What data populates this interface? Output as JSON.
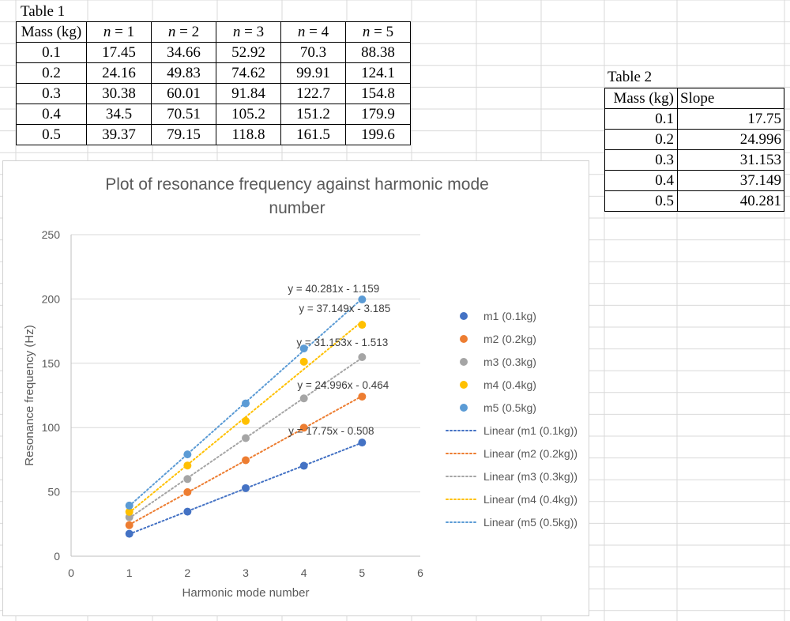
{
  "table1": {
    "caption": "Table 1",
    "headers": [
      "Mass (kg)",
      "n = 1",
      "n = 2",
      "n = 3",
      "n = 4",
      "n = 5"
    ],
    "header_var": "n",
    "header_vals": [
      "= 1",
      "= 2",
      "= 3",
      "= 4",
      "= 5"
    ],
    "rows": [
      [
        "0.1",
        "17.45",
        "34.66",
        "52.92",
        "70.3",
        "88.38"
      ],
      [
        "0.2",
        "24.16",
        "49.83",
        "74.62",
        "99.91",
        "124.1"
      ],
      [
        "0.3",
        "30.38",
        "60.01",
        "91.84",
        "122.7",
        "154.8"
      ],
      [
        "0.4",
        "34.5",
        "70.51",
        "105.2",
        "151.2",
        "179.9"
      ],
      [
        "0.5",
        "39.37",
        "79.15",
        "118.8",
        "161.5",
        "199.6"
      ]
    ]
  },
  "table2": {
    "caption": "Table 2",
    "headers": [
      "Mass (kg)",
      "Slope"
    ],
    "rows": [
      [
        "0.1",
        "17.75"
      ],
      [
        "0.2",
        "24.996"
      ],
      [
        "0.3",
        "31.153"
      ],
      [
        "0.4",
        "37.149"
      ],
      [
        "0.5",
        "40.281"
      ]
    ]
  },
  "chart_data": {
    "type": "scatter",
    "title_lines": [
      "Plot of resonance frequency against harmonic mode",
      "number"
    ],
    "xlabel": "Harmonic mode number",
    "ylabel": "Resonance frequency (Hz)",
    "xlim": [
      0,
      6
    ],
    "ylim": [
      0,
      250
    ],
    "xticks": [
      0,
      1,
      2,
      3,
      4,
      5,
      6
    ],
    "yticks": [
      0,
      50,
      100,
      150,
      200,
      250
    ],
    "grid": "horizontal",
    "legend_position": "right",
    "x": [
      1,
      2,
      3,
      4,
      5
    ],
    "series": [
      {
        "name": "m1 (0.1kg)",
        "color": "#4472C4",
        "values": [
          17.45,
          34.66,
          52.92,
          70.3,
          88.38
        ],
        "trend_name": "Linear (m1 (0.1kg))",
        "slope": 17.75,
        "intercept": -0.508,
        "equation": "y = 17.75x - 0.508"
      },
      {
        "name": "m2 (0.2kg)",
        "color": "#ED7D31",
        "values": [
          24.16,
          49.83,
          74.62,
          99.91,
          124.1
        ],
        "trend_name": "Linear (m2 (0.2kg))",
        "slope": 24.996,
        "intercept": -0.464,
        "equation": "y = 24.996x - 0.464"
      },
      {
        "name": "m3 (0.3kg)",
        "color": "#A5A5A5",
        "values": [
          30.38,
          60.01,
          91.84,
          122.7,
          154.8
        ],
        "trend_name": "Linear (m3 (0.3kg))",
        "slope": 31.153,
        "intercept": -1.513,
        "equation": "y = 31.153x - 1.513"
      },
      {
        "name": "m4 (0.4kg)",
        "color": "#FFC000",
        "values": [
          34.5,
          70.51,
          105.2,
          151.2,
          179.9
        ],
        "trend_name": "Linear (m4 (0.4kg))",
        "slope": 37.149,
        "intercept": -3.185,
        "equation": "y = 37.149x - 3.185"
      },
      {
        "name": "m5 (0.5kg)",
        "color": "#5B9BD5",
        "values": [
          39.37,
          79.15,
          118.8,
          161.5,
          199.6
        ],
        "trend_name": "Linear (m5 (0.5kg))",
        "slope": 40.281,
        "intercept": -1.159,
        "equation": "y = 40.281x - 1.159"
      }
    ]
  }
}
